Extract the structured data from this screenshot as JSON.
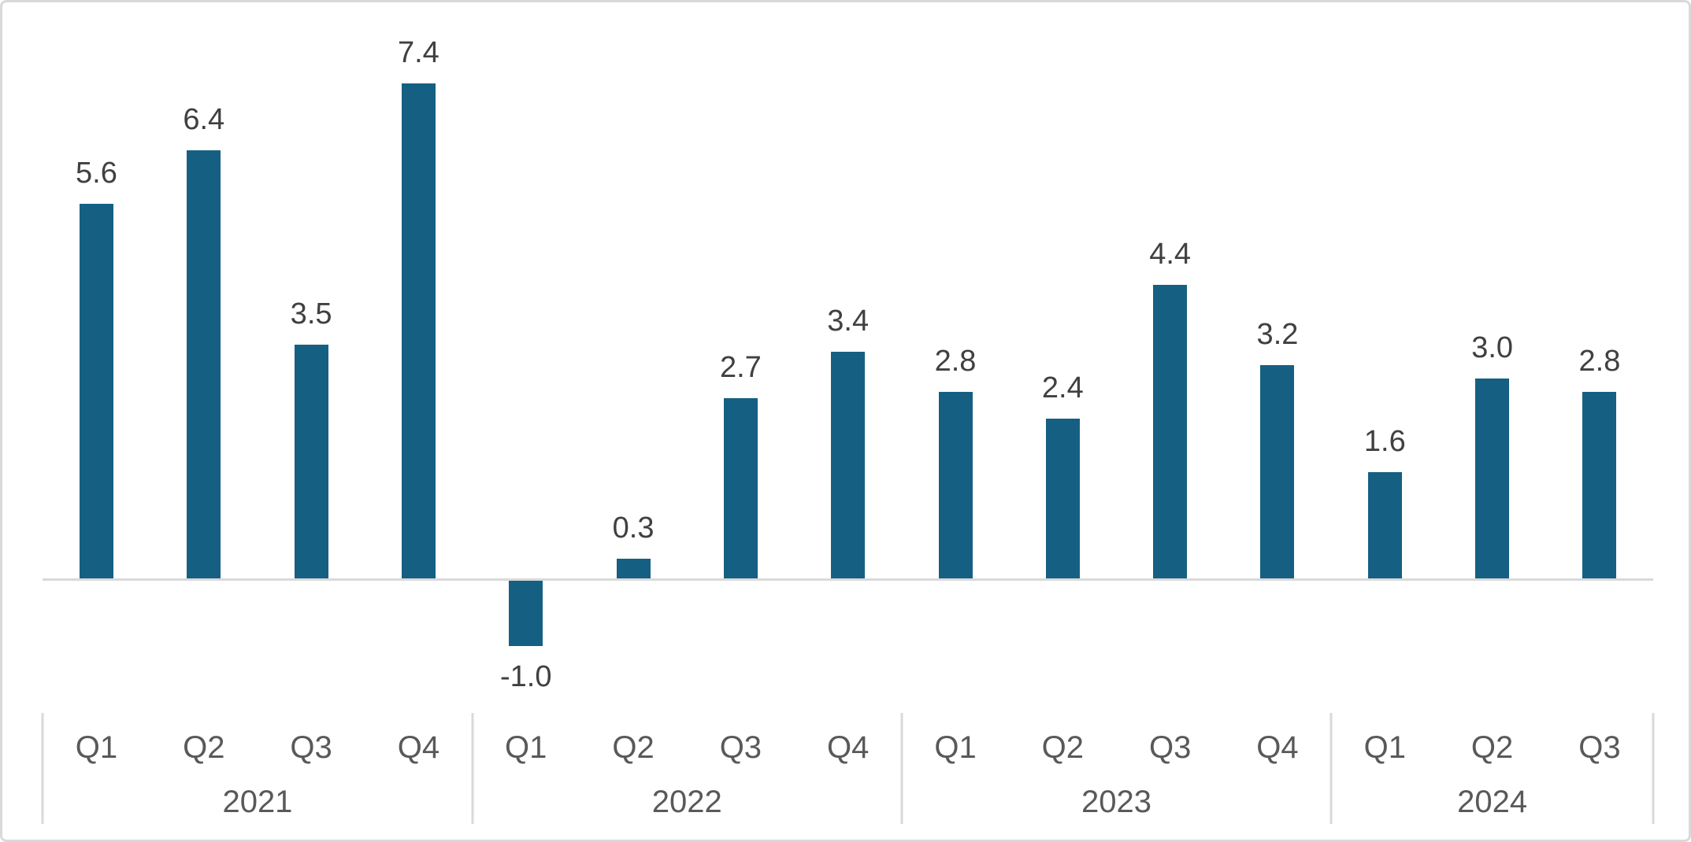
{
  "chart": {
    "background_color": "#FFFFFF",
    "border_color": "#D9D9D9"
  },
  "chart_data": {
    "type": "bar",
    "title": "",
    "xlabel": "",
    "ylabel": "",
    "categories": [
      "Q1",
      "Q2",
      "Q3",
      "Q4",
      "Q1",
      "Q2",
      "Q3",
      "Q4",
      "Q1",
      "Q2",
      "Q3",
      "Q4",
      "Q1",
      "Q2",
      "Q3"
    ],
    "year_groups": [
      {
        "label": "2021",
        "count": 4
      },
      {
        "label": "2022",
        "count": 4
      },
      {
        "label": "2023",
        "count": 4
      },
      {
        "label": "2024",
        "count": 3
      }
    ],
    "series": [
      {
        "name": "quarterly-values",
        "values": [
          5.6,
          6.4,
          3.5,
          7.4,
          -1.0,
          0.3,
          2.7,
          3.4,
          2.8,
          2.4,
          4.4,
          3.2,
          1.6,
          3.0,
          2.8
        ]
      }
    ],
    "data_labels": [
      "5.6",
      "6.4",
      "3.5",
      "7.4",
      "-1.0",
      "0.3",
      "2.7",
      "3.4",
      "2.8",
      "2.4",
      "4.4",
      "3.2",
      "1.6",
      "3.0",
      "2.8"
    ],
    "ylim": [
      -1.8,
      8.2
    ],
    "grid": false,
    "legend": false,
    "y_axis_visible": false,
    "bar_color": "#156082",
    "value_label_color": "#404040",
    "axis_label_color": "#595959",
    "axis_line_color": "#D9D9D9"
  }
}
